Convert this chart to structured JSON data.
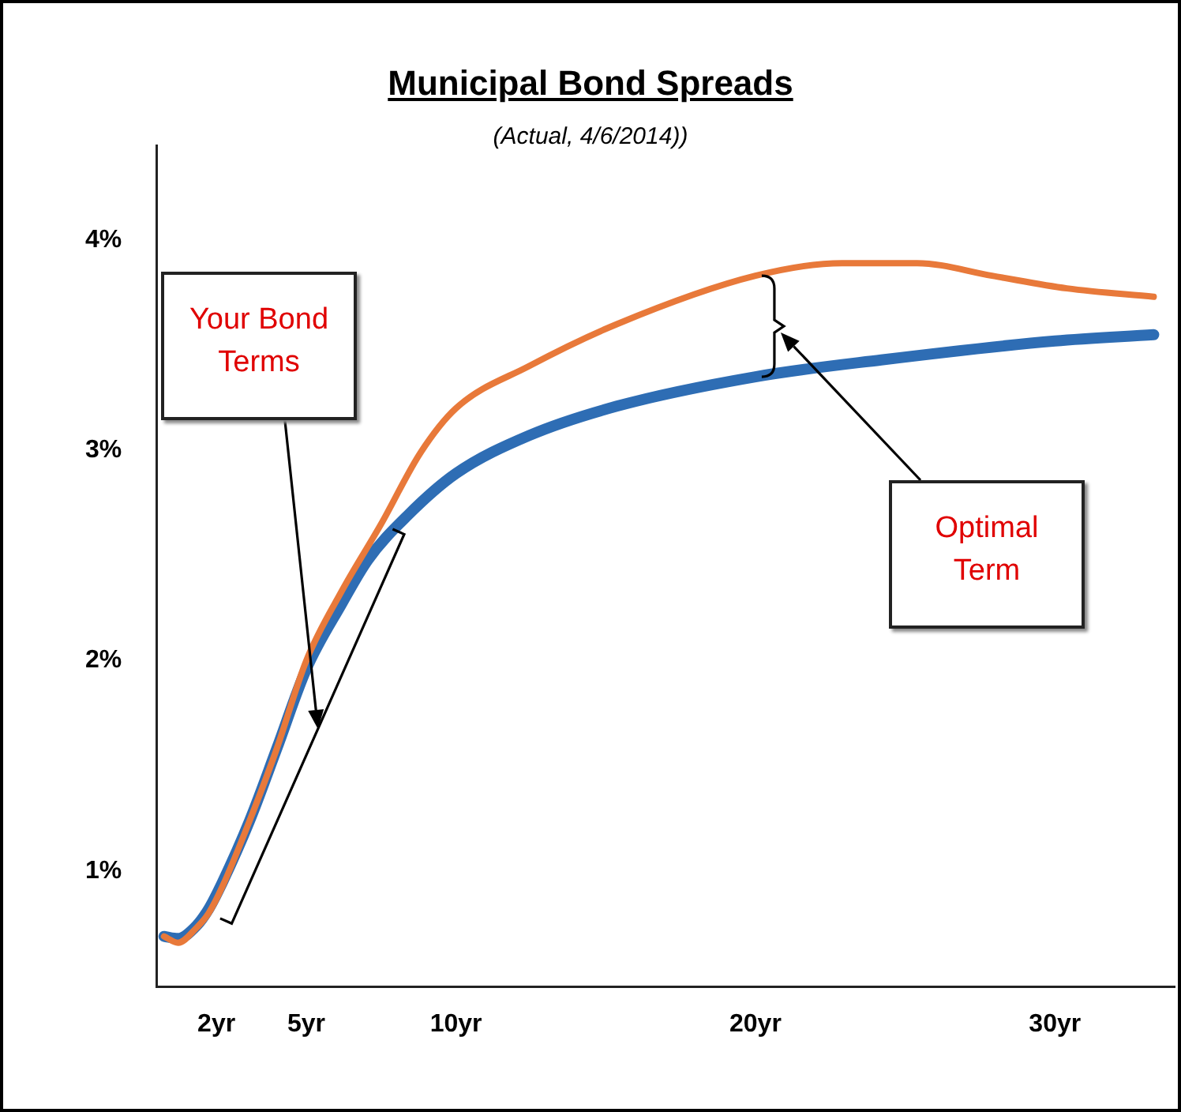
{
  "chart_data": {
    "type": "line",
    "title": "Municipal Bond Spreads",
    "subtitle": "(Actual, 4/6/2014))",
    "xlim": [
      0,
      34
    ],
    "xticks": [
      {
        "value": 2,
        "label": "2yr"
      },
      {
        "value": 5,
        "label": "5yr"
      },
      {
        "value": 10,
        "label": "10yr"
      },
      {
        "value": 20,
        "label": "20yr"
      },
      {
        "value": 30,
        "label": "30yr"
      }
    ],
    "ylim": [
      0.45,
      4.45
    ],
    "yticks": [
      {
        "value": 1,
        "label": "1%"
      },
      {
        "value": 2,
        "label": "2%"
      },
      {
        "value": 3,
        "label": "3%"
      },
      {
        "value": 4,
        "label": "4%"
      }
    ],
    "grid": false,
    "legend": false,
    "marker": "none",
    "line_style": "solid",
    "annotations": [
      "Your Bond Terms",
      "Optimal Term"
    ],
    "series": [
      {
        "color": "#2e6db4",
        "x": [
          0.25,
          0.72,
          1.33,
          1.74,
          2.21,
          3.11,
          4.01,
          5,
          6.18,
          7.06,
          8.38,
          10,
          12.43,
          15.37,
          20,
          24.2,
          30,
          33.3
        ],
        "values": [
          0.69,
          0.68,
          0.74,
          0.82,
          0.95,
          1.24,
          1.58,
          1.96,
          2.27,
          2.48,
          2.69,
          2.89,
          3.07,
          3.21,
          3.35,
          3.43,
          3.52,
          3.55
        ]
      },
      {
        "color": "#e8793a",
        "x": [
          0.25,
          0.72,
          1.33,
          1.74,
          2.21,
          3.11,
          4.01,
          5,
          6.18,
          7.5,
          8.82,
          10,
          12.43,
          15.37,
          20,
          22.9,
          25.4,
          27.9,
          30.4,
          33.3
        ],
        "values": [
          0.69,
          0.66,
          0.73,
          0.8,
          0.93,
          1.24,
          1.58,
          2.0,
          2.33,
          2.65,
          2.99,
          3.2,
          3.4,
          3.6,
          3.83,
          3.89,
          3.89,
          3.83,
          3.77,
          3.73
        ]
      }
    ]
  }
}
